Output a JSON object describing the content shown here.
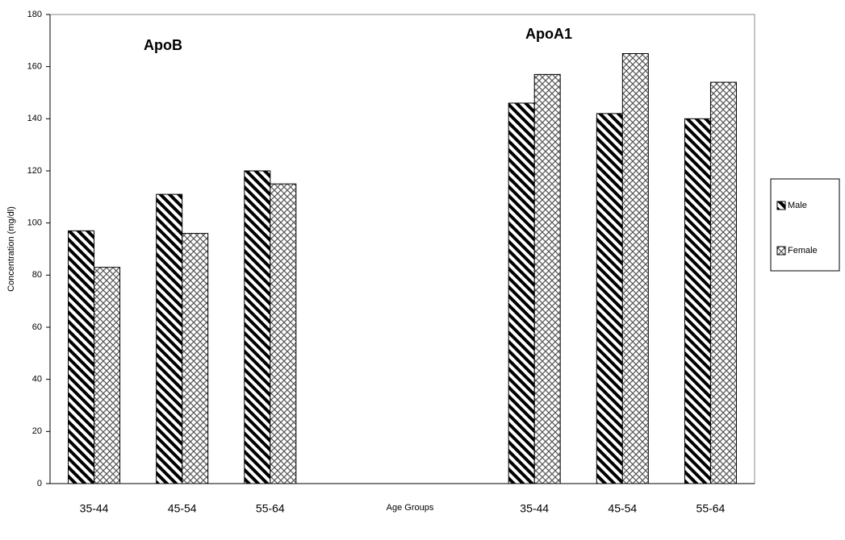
{
  "chart_data": {
    "type": "bar",
    "categories": [
      "35-44",
      "45-54",
      "55-64",
      null,
      null,
      "35-44",
      "45-54",
      "55-64"
    ],
    "series": [
      {
        "name": "Male",
        "color": "#000000",
        "values": [
          97,
          111,
          120,
          null,
          null,
          146,
          142,
          140
        ]
      },
      {
        "name": "Female",
        "color": "#555555",
        "values": [
          83,
          96,
          115,
          null,
          null,
          157,
          165,
          154
        ]
      }
    ],
    "annotations": [
      "ApoB",
      "ApoA1"
    ],
    "xlabel": "Age Groups",
    "ylabel": "Concentration (mg/dl)",
    "ylim": [
      0,
      180
    ],
    "yticks": [
      0,
      20,
      40,
      60,
      80,
      100,
      120,
      140,
      160,
      180
    ],
    "grid": false,
    "legend": "right"
  }
}
